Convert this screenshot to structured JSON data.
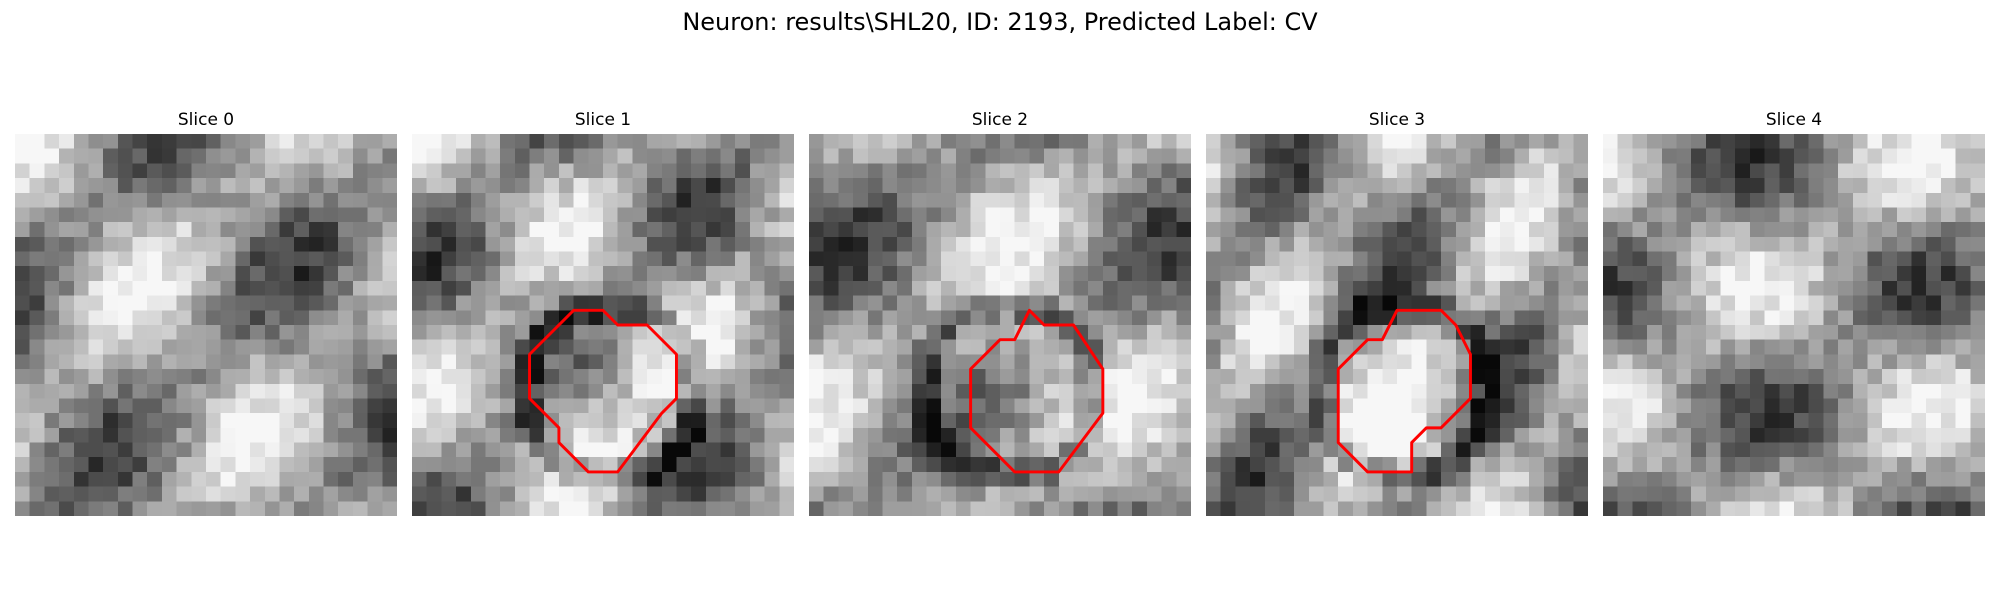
{
  "figure": {
    "title": "Neuron: results\\SHL20, ID: 2193, Predicted Label: CV",
    "contour_color": "#ff0000"
  },
  "panels": [
    {
      "title": "Slice 0",
      "has_contour": false,
      "seed": 11
    },
    {
      "title": "Slice 1",
      "has_contour": true,
      "seed": 23,
      "contour": [
        [
          11,
          12
        ],
        [
          13,
          12
        ],
        [
          14,
          13
        ],
        [
          16,
          13
        ],
        [
          18,
          15
        ],
        [
          18,
          18
        ],
        [
          17,
          19
        ],
        [
          14,
          23
        ],
        [
          12,
          23
        ],
        [
          10,
          21
        ],
        [
          10,
          20
        ],
        [
          8,
          18
        ],
        [
          8,
          15
        ]
      ]
    },
    {
      "title": "Slice 2",
      "has_contour": true,
      "seed": 37,
      "contour": [
        [
          15,
          12
        ],
        [
          16,
          13
        ],
        [
          18,
          13
        ],
        [
          20,
          16
        ],
        [
          20,
          19
        ],
        [
          17,
          23
        ],
        [
          14,
          23
        ],
        [
          12,
          21
        ],
        [
          11,
          20
        ],
        [
          11,
          16
        ],
        [
          13,
          14
        ],
        [
          14,
          14
        ]
      ]
    },
    {
      "title": "Slice 3",
      "has_contour": true,
      "seed": 41,
      "contour": [
        [
          13,
          12
        ],
        [
          16,
          12
        ],
        [
          17,
          13
        ],
        [
          18,
          15
        ],
        [
          18,
          18
        ],
        [
          16,
          20
        ],
        [
          15,
          20
        ],
        [
          14,
          21
        ],
        [
          14,
          23
        ],
        [
          11,
          23
        ],
        [
          9,
          21
        ],
        [
          9,
          16
        ],
        [
          11,
          14
        ],
        [
          12,
          14
        ]
      ]
    },
    {
      "title": "Slice 4",
      "has_contour": false,
      "seed": 53
    }
  ]
}
